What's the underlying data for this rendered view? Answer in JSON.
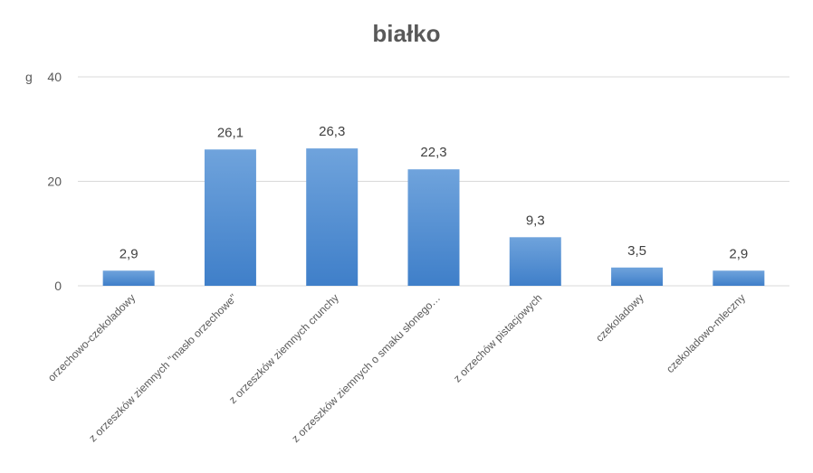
{
  "chart_data": {
    "type": "bar",
    "title": "białko",
    "ylabel": "g",
    "xlabel": "",
    "ylim": [
      0,
      40
    ],
    "yticks": [
      0,
      20,
      40
    ],
    "categories": [
      "orzechowo-czekoladowy",
      "z orzeszków ziemnych \"masło orzechowe\"",
      "z orzeszków ziemnych crunchy",
      "z orzeszków ziemnych o smaku słonego…",
      "z orzechów pistacjowych",
      "czekoladowy",
      "czekoladowo-mleczny"
    ],
    "values": [
      2.9,
      26.1,
      26.3,
      22.3,
      9.3,
      3.5,
      2.9
    ],
    "data_labels": [
      "2,9",
      "26,1",
      "26,3",
      "22,3",
      "9,3",
      "3,5",
      "2,9"
    ],
    "grid": true,
    "legend": "none",
    "colors": {
      "bar_top": "#6fa3dc",
      "bar_bottom": "#3f7fc9",
      "grid": "#d9d9d9",
      "text": "#595959"
    }
  }
}
